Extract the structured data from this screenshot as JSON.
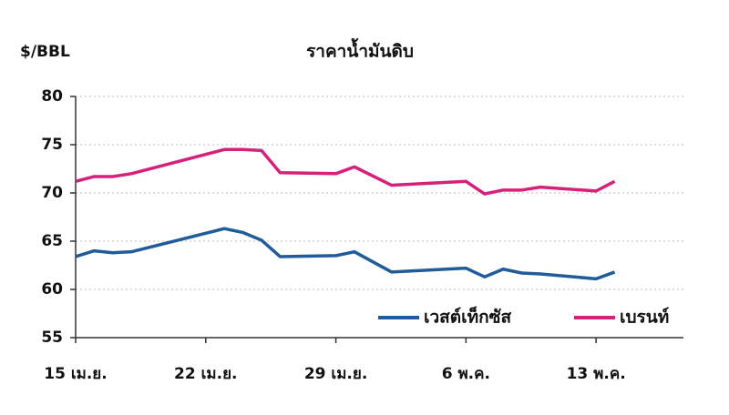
{
  "chart_data": {
    "type": "line",
    "title": "ราคาน้ำมันดิบ",
    "y_label": "$/BBL",
    "x": [
      0,
      1,
      2,
      3,
      8,
      9,
      10,
      11,
      14,
      15,
      17,
      21,
      22,
      23,
      24,
      25,
      28,
      29
    ],
    "series": [
      {
        "name": "เวสต์เท็กซัส",
        "color": "#1f5c99",
        "values": [
          63.4,
          64.0,
          63.8,
          63.9,
          66.3,
          65.9,
          65.1,
          63.4,
          63.5,
          63.9,
          61.8,
          62.2,
          61.3,
          62.1,
          61.7,
          61.6,
          61.1,
          61.8
        ]
      },
      {
        "name": "เบรนท์",
        "color": "#d6217a",
        "values": [
          71.2,
          71.7,
          71.7,
          72.0,
          74.5,
          74.5,
          74.4,
          72.1,
          72.0,
          72.7,
          70.8,
          71.2,
          69.9,
          70.3,
          70.3,
          70.6,
          70.2,
          71.2
        ]
      }
    ],
    "xlim": [
      0,
      32.7
    ],
    "xticks": [
      {
        "value": 0,
        "label": "15 เม.ย."
      },
      {
        "value": 7,
        "label": "22 เม.ย."
      },
      {
        "value": 14,
        "label": "29 เม.ย."
      },
      {
        "value": 21,
        "label": "6 พ.ค."
      },
      {
        "value": 28,
        "label": "13 พ.ค."
      }
    ],
    "ylim": [
      55,
      80
    ],
    "yticks": [
      55,
      60,
      65,
      70,
      75,
      80
    ],
    "grid": true,
    "legend": "lower right"
  }
}
